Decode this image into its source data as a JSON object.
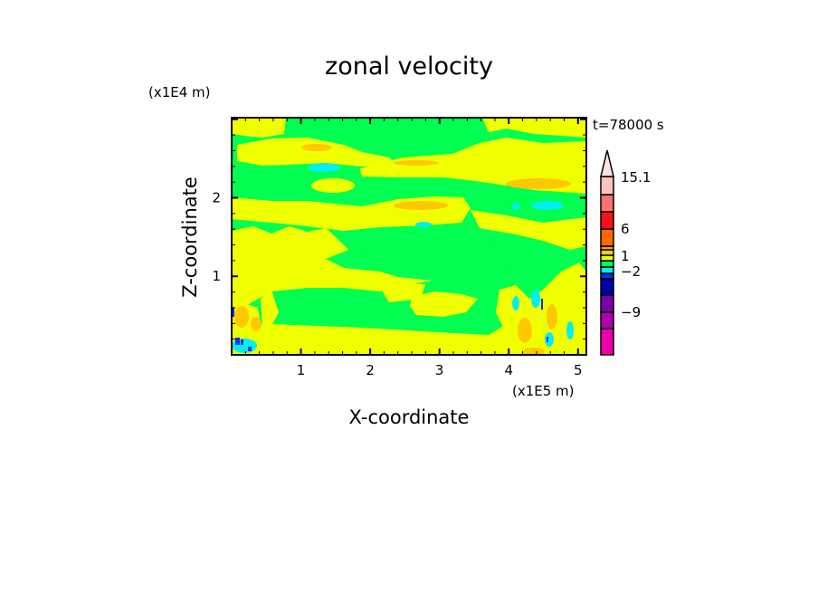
{
  "chart_data": {
    "type": "heatmap",
    "subtype": "filled contour",
    "title": "zonal velocity",
    "xlabel": "X-coordinate",
    "ylabel": "Z-coordinate",
    "x_unit_label": "(x1E5 m)",
    "y_unit_label": "(x1E4 m)",
    "time_label": "t=78000 s",
    "xlim": [
      0,
      5.12
    ],
    "ylim": [
      0,
      3.02
    ],
    "xticks": [
      "1",
      "2",
      "3",
      "4",
      "5"
    ],
    "xtick_values": [
      1,
      2,
      3,
      4,
      5
    ],
    "yticks": [
      "1",
      "2"
    ],
    "ytick_values": [
      1,
      2
    ],
    "colorbar": {
      "labels": [
        "15.1",
        "6",
        "1",
        "-2",
        "-9"
      ],
      "label_levels": [
        15.1,
        6,
        1,
        -2,
        -9
      ],
      "colors_bottom_to_top": [
        "#ee00aa",
        "#b000b0",
        "#7a00a8",
        "#0000a8",
        "#0a30f0",
        "#00f0f0",
        "#00ff50",
        "#f0ff00",
        "#ffd000",
        "#ffa000",
        "#ff6a00",
        "#ff1010",
        "#ff7070",
        "#ffc0c0"
      ],
      "extend_top_color": "#ffe0e0"
    },
    "dominant_values": "field mostly between -1 and 1 (green/yellow bands), with orange (+2..4) and cyan (-1..-2) patches; extremes near x=0 and x=4-5 at low altitude"
  }
}
